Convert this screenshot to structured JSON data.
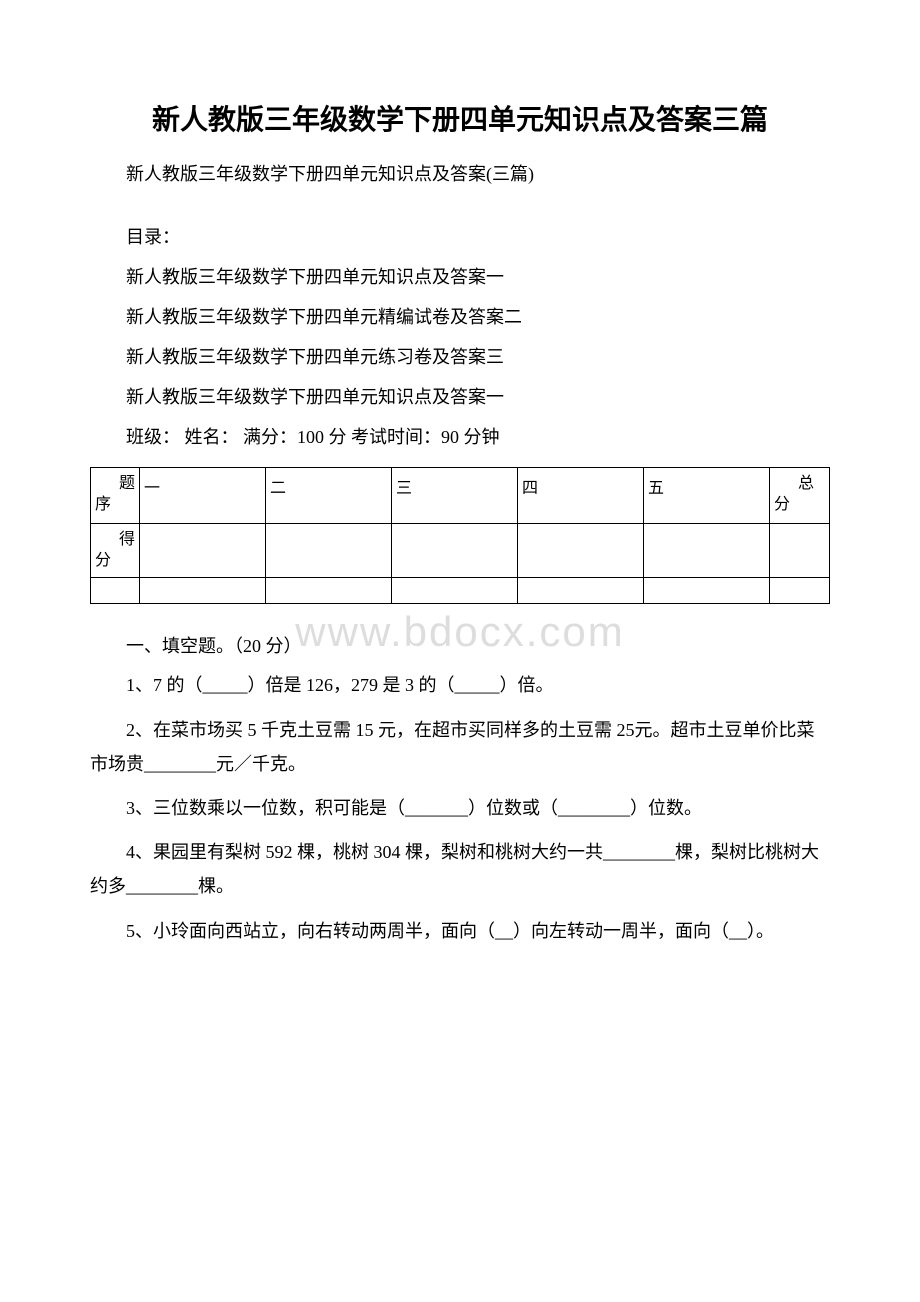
{
  "watermark": "www.bdocx.com",
  "title": "新人教版三年级数学下册四单元知识点及答案三篇",
  "subtitle": "新人教版三年级数学下册四单元知识点及答案(三篇)",
  "toc_header": "目录：",
  "toc_items": [
    "新人教版三年级数学下册四单元知识点及答案一",
    "新人教版三年级数学下册四单元精编试卷及答案二",
    "新人教版三年级数学下册四单元练习卷及答案三",
    "新人教版三年级数学下册四单元知识点及答案一"
  ],
  "exam_info": "班级：  姓名：  满分：100 分 考试时间：90 分钟",
  "score_table": {
    "row1_label": "题序",
    "row1_cols": [
      "一",
      "二",
      "三",
      "四",
      "五"
    ],
    "row1_total": "总分",
    "row2_label": "得分",
    "columns_count": 5,
    "border_color": "#000000",
    "background": "#ffffff",
    "cell_font_size": 16
  },
  "section1_title": "一、填空题。（20 分）",
  "questions": {
    "q1": "1、7 的（_____）倍是 126，279 是 3 的（_____）倍。",
    "q2": "2、在菜市场买 5 千克土豆需 15 元，在超市买同样多的土豆需 25元。超市土豆单价比菜市场贵________元／千克。",
    "q3": "3、三位数乘以一位数，积可能是（_______）位数或（________）位数。",
    "q4": "4、果园里有梨树 592 棵，桃树 304 棵，梨树和桃树大约一共________棵，梨树比桃树大约多________棵。",
    "q5": "5、小玲面向西站立，向右转动两周半，面向（__）向左转动一周半，面向（__）。"
  },
  "colors": {
    "text": "#000000",
    "background": "#ffffff",
    "watermark": "#dddddd"
  },
  "typography": {
    "title_fontsize": 28,
    "body_fontsize": 18,
    "table_fontsize": 16,
    "watermark_fontsize": 42
  }
}
